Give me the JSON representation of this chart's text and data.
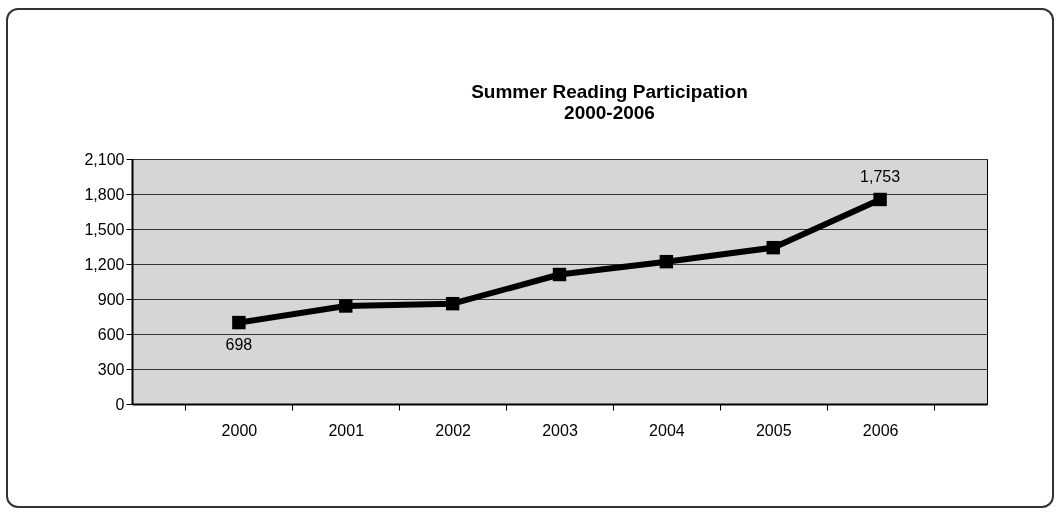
{
  "chart_data": {
    "type": "line",
    "title": [
      "Summer Reading Participation",
      "2000-2006"
    ],
    "categories": [
      "2000",
      "2001",
      "2002",
      "2003",
      "2004",
      "2005",
      "2006"
    ],
    "series": [
      {
        "color": "#000000",
        "values": [
          698,
          840,
          860,
          1110,
          1220,
          1340,
          1753
        ],
        "value_labels": [
          "698",
          null,
          null,
          null,
          null,
          null,
          "1,753"
        ]
      }
    ],
    "ylim": [
      0,
      2100
    ],
    "yticks": [
      {
        "value": 0,
        "label": "0"
      },
      {
        "value": 300,
        "label": "300"
      },
      {
        "value": 600,
        "label": "600"
      },
      {
        "value": 900,
        "label": "900"
      },
      {
        "value": 1200,
        "label": "1,200"
      },
      {
        "value": 1500,
        "label": "1,500"
      },
      {
        "value": 1800,
        "label": "1,800"
      },
      {
        "value": 2100,
        "label": "2,100"
      }
    ],
    "grid": "y",
    "marker": "square",
    "line_style": "solid"
  }
}
